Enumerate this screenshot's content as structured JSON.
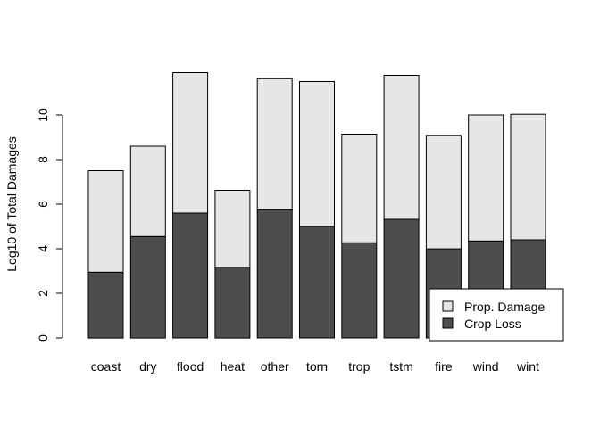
{
  "chart_data": {
    "type": "bar",
    "stacked": true,
    "title": "",
    "xlabel": "",
    "ylabel": "Log10 of Total Damages",
    "categories": [
      "coast",
      "dry",
      "flood",
      "heat",
      "other",
      "torn",
      "trop",
      "tstm",
      "fire",
      "wind",
      "wint"
    ],
    "series": [
      {
        "name": "Crop Loss",
        "color": "#4d4d4d",
        "values": [
          2.95,
          4.55,
          5.6,
          3.17,
          5.78,
          5.0,
          4.27,
          5.32,
          4.0,
          4.35,
          4.4
        ]
      },
      {
        "name": "Prop. Damage",
        "color": "#e6e6e6",
        "values": [
          4.55,
          4.05,
          6.3,
          3.45,
          5.85,
          6.5,
          4.87,
          6.46,
          5.09,
          5.65,
          5.63
        ]
      }
    ],
    "ylim": [
      0,
      12
    ],
    "yticks": [
      0,
      2,
      4,
      6,
      8,
      10
    ],
    "grid": false,
    "legend": {
      "placement": "bottom-right",
      "entries": [
        "Prop. Damage",
        "Crop Loss"
      ]
    }
  }
}
